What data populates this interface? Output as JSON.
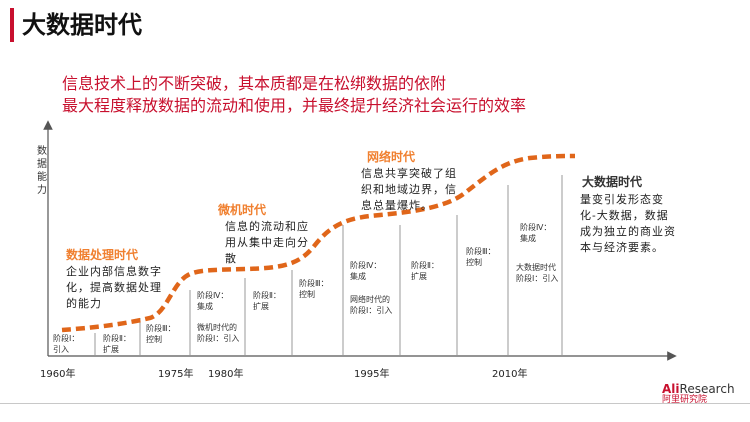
{
  "title": "大数据时代",
  "subtitle_lines": [
    "信息技术上的不断突破，其本质都是在松绑数据的依附",
    "最大程度释放数据的流动和使用，并最终提升经济社会运行的效率"
  ],
  "y_axis_label": "数据能力",
  "eras": [
    {
      "name": "数据处理时代",
      "description": "企业内部信息数字化，提高数据处理的能力"
    },
    {
      "name": "微机时代",
      "description": "信息的流动和应用从集中走向分散"
    },
    {
      "name": "网络时代",
      "description": "信息共享突破了组织和地域边界，信息总量爆炸。"
    },
    {
      "name": "大数据时代",
      "description": "量变引发形态变化-大数据，数据成为独立的商业资本与经济要素。"
    }
  ],
  "stages": [
    "阶段Ⅰ：\n引入",
    "阶段Ⅱ：\n扩展",
    "阶段Ⅲ：\n控制",
    "阶段Ⅳ：\n集成",
    "阶段Ⅱ：\n扩展",
    "阶段Ⅲ：\n控制",
    "阶段Ⅳ：\n集成",
    "阶段Ⅱ：\n扩展",
    "阶段Ⅲ：\n控制",
    "阶段Ⅳ：\n集成",
    "微机时代的\n阶段Ⅰ：引入",
    "网络时代的\n阶段Ⅰ：引入",
    "大数据时代\n阶段Ⅰ：引入"
  ],
  "years": [
    "1960年",
    "1975年",
    "1980年",
    "1995年",
    "2010年"
  ],
  "logo": {
    "main_a": "Ali",
    "main_b": "Research",
    "sub": "阿里研究院"
  },
  "colors": {
    "accent": "#c8102e",
    "curve": "#e0661a",
    "era_label": "#f08030"
  }
}
